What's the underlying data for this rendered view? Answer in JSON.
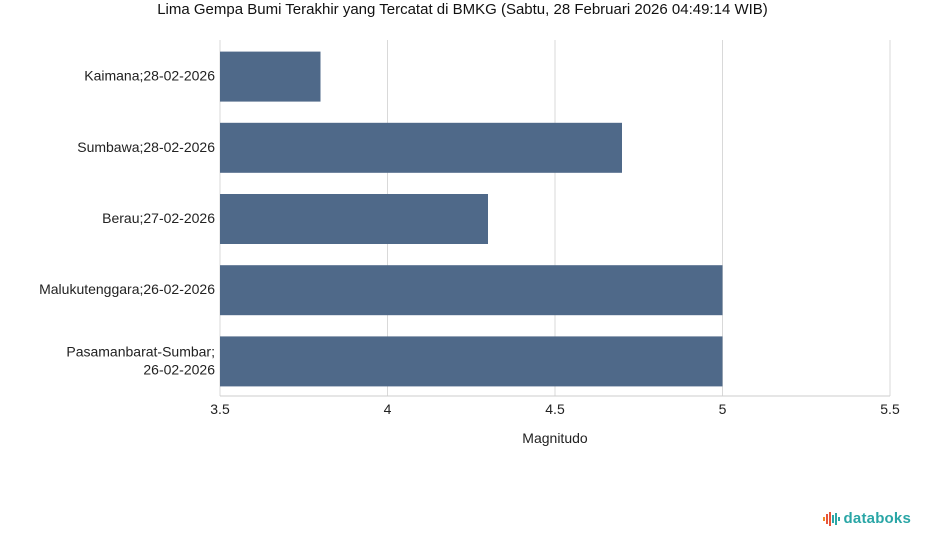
{
  "chart_data": {
    "type": "bar",
    "orientation": "horizontal",
    "title": "Lima Gempa Bumi Terakhir yang Tercatat di BMKG (Sabtu, 28 Februari 2026 04:49:14 WIB)",
    "categories": [
      [
        "Kaimana;28-02-2026"
      ],
      [
        "Sumbawa;28-02-2026"
      ],
      [
        "Berau;27-02-2026"
      ],
      [
        "Malukutenggara;26-02-2026"
      ],
      [
        "Pasamanbarat-Sumbar;",
        "26-02-2026"
      ]
    ],
    "values": [
      3.8,
      4.7,
      4.3,
      5.0,
      5.0
    ],
    "xlabel": "Magnitudo",
    "ylabel": "",
    "xlim": [
      3.5,
      5.5
    ],
    "xticks": [
      "3.5",
      "4",
      "4.5",
      "5",
      "5.5"
    ],
    "xtick_values": [
      3.5,
      4,
      4.5,
      5,
      5.5
    ],
    "bar_color": "#4f6989",
    "grid": "vertical"
  },
  "brand": {
    "name": "databoks",
    "color": "#2aa6a6",
    "icon": "databoks-logo-icon"
  }
}
